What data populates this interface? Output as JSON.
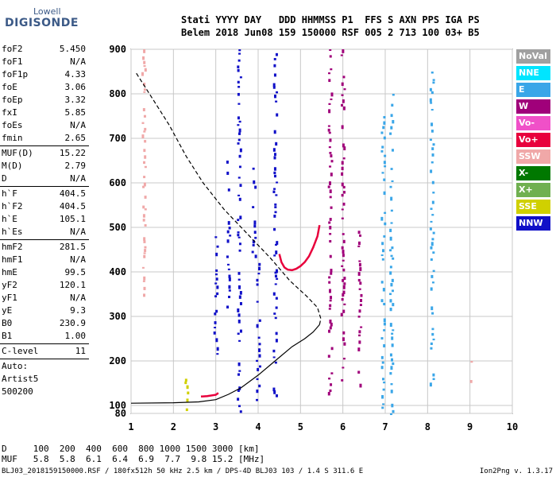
{
  "logo": {
    "top": "Lowell",
    "bottom": "DIGISONDE"
  },
  "header": {
    "line1": "Stati YYYY DAY   DDD HHMMSS P1  FFS S AXN PPS IGA PS",
    "line2": "Belem 2018 Jun08 159 150000 RSF 005 2 713 100 03+ B5"
  },
  "params": [
    {
      "label": "foF2",
      "value": "5.450"
    },
    {
      "label": "foF1",
      "value": "N/A"
    },
    {
      "label": "foF1p",
      "value": "4.33"
    },
    {
      "label": "foE",
      "value": "3.06"
    },
    {
      "label": "foEp",
      "value": "3.32"
    },
    {
      "label": "fxI",
      "value": "5.85"
    },
    {
      "label": "foEs",
      "value": "N/A"
    },
    {
      "label": "fmin",
      "value": "2.65"
    },
    {
      "sep": true
    },
    {
      "label": "MUF(D)",
      "value": "15.22"
    },
    {
      "label": "M(D)",
      "value": "2.79"
    },
    {
      "label": "D",
      "value": "N/A"
    },
    {
      "sep": true
    },
    {
      "label": "h`F",
      "value": "404.5"
    },
    {
      "label": "h`F2",
      "value": "404.5"
    },
    {
      "label": "h`E",
      "value": "105.1"
    },
    {
      "label": "h`Es",
      "value": "N/A"
    },
    {
      "sep": true
    },
    {
      "label": "hmF2",
      "value": "281.5"
    },
    {
      "label": "hmF1",
      "value": "N/A"
    },
    {
      "label": "hmE",
      "value": "99.5"
    },
    {
      "label": "yF2",
      "value": "120.1"
    },
    {
      "label": "yF1",
      "value": "N/A"
    },
    {
      "label": "yE",
      "value": "9.3"
    },
    {
      "label": "B0",
      "value": "230.9"
    },
    {
      "label": "B1",
      "value": "1.00"
    },
    {
      "sep": true
    },
    {
      "label": "C-level",
      "value": "11"
    },
    {
      "sep": true
    },
    {
      "label": "Auto:",
      "value": ""
    },
    {
      "label": "Artist5",
      "value": ""
    },
    {
      "label": "500200",
      "value": ""
    }
  ],
  "legend": [
    {
      "label": "NoVal",
      "color": "#a0a0a0"
    },
    {
      "label": "NNE",
      "color": "#00e5ff"
    },
    {
      "label": "E",
      "color": "#3aa6e8"
    },
    {
      "label": "W",
      "color": "#a0007a"
    },
    {
      "label": "Vo-",
      "color": "#f050c8"
    },
    {
      "label": "Vo+",
      "color": "#e8003c"
    },
    {
      "label": "SSW",
      "color": "#f0a8a8"
    },
    {
      "label": "X-",
      "color": "#007800"
    },
    {
      "label": "X+",
      "color": "#70b050"
    },
    {
      "label": "SSE",
      "color": "#d0d000"
    },
    {
      "label": "NNW",
      "color": "#1010c8"
    }
  ],
  "footer": {
    "dist": "D     100  200  400  600  800 1000 1500 3000 [km]",
    "muf": "MUF   5.8  5.8  6.1  6.4  6.9  7.7  9.8 15.2 [MHz]",
    "file": "BLJ03_2018159150000.RSF / 180fx512h 50 kHz 2.5 km / DPS-4D BLJ03 103 / 1.4 S 311.6 E",
    "version": "Ion2Png v. 1.3.17"
  },
  "chart_data": {
    "type": "scatter",
    "xlim": [
      1,
      10
    ],
    "ylim": [
      80,
      900
    ],
    "x_ticks": [
      "1",
      "2",
      "3",
      "4",
      "5",
      "6",
      "7",
      "8",
      "9",
      "10"
    ],
    "y_ticks": [
      "80",
      "100",
      "200",
      "300",
      "400",
      "500",
      "600",
      "700",
      "800",
      "900"
    ],
    "grid": true,
    "traces": [
      {
        "name": "F2 O-trace",
        "points": [
          [
            4.5,
            440
          ],
          [
            4.55,
            422
          ],
          [
            4.62,
            410
          ],
          [
            4.7,
            405
          ],
          [
            4.8,
            404
          ],
          [
            4.9,
            407
          ],
          [
            5.0,
            413
          ],
          [
            5.1,
            422
          ],
          [
            5.2,
            435
          ],
          [
            5.3,
            455
          ],
          [
            5.4,
            480
          ],
          [
            5.45,
            505
          ]
        ]
      },
      {
        "name": "E trace",
        "points": [
          [
            2.65,
            120
          ],
          [
            2.8,
            121
          ],
          [
            3.0,
            124
          ],
          [
            3.06,
            128
          ]
        ]
      },
      {
        "name": "F profile (solid)",
        "points": [
          [
            1.0,
            105
          ],
          [
            2.0,
            106
          ],
          [
            2.6,
            108
          ],
          [
            3.0,
            113
          ],
          [
            3.3,
            125
          ],
          [
            3.6,
            140
          ],
          [
            4.0,
            168
          ],
          [
            4.4,
            200
          ],
          [
            4.8,
            232
          ],
          [
            5.1,
            250
          ],
          [
            5.3,
            265
          ],
          [
            5.45,
            281.5
          ]
        ]
      },
      {
        "name": "F profile (dashed)",
        "points": [
          [
            5.45,
            281.5
          ],
          [
            5.48,
            295
          ],
          [
            5.4,
            320
          ],
          [
            5.15,
            345
          ],
          [
            4.75,
            380
          ],
          [
            4.3,
            430
          ],
          [
            3.7,
            490
          ],
          [
            3.2,
            540
          ],
          [
            2.7,
            600
          ],
          [
            2.3,
            660
          ],
          [
            1.9,
            730
          ],
          [
            1.5,
            790
          ],
          [
            1.1,
            850
          ]
        ]
      }
    ],
    "echo_columns": [
      {
        "x": 3.55,
        "y0": 80,
        "y1": 900,
        "color": "NNW"
      },
      {
        "x": 3.0,
        "y0": 210,
        "y1": 480,
        "color": "NNW"
      },
      {
        "x": 3.3,
        "y0": 320,
        "y1": 650,
        "color": "NNW"
      },
      {
        "x": 3.9,
        "y0": 420,
        "y1": 650,
        "color": "NNW"
      },
      {
        "x": 4.0,
        "y0": 110,
        "y1": 420,
        "color": "NNW"
      },
      {
        "x": 4.4,
        "y0": 110,
        "y1": 900,
        "color": "NNW"
      },
      {
        "x": 6.0,
        "y0": 120,
        "y1": 900,
        "color": "W"
      },
      {
        "x": 5.7,
        "y0": 120,
        "y1": 900,
        "color": "W"
      },
      {
        "x": 6.4,
        "y0": 140,
        "y1": 500,
        "color": "W"
      },
      {
        "x": 6.95,
        "y0": 80,
        "y1": 750,
        "color": "E"
      },
      {
        "x": 7.15,
        "y0": 80,
        "y1": 800,
        "color": "E"
      },
      {
        "x": 8.1,
        "y0": 150,
        "y1": 850,
        "color": "E"
      },
      {
        "x": 1.3,
        "y0": 350,
        "y1": 900,
        "color": "SSW"
      },
      {
        "x": 9.05,
        "y0": 80,
        "y1": 200,
        "color": "SSW"
      },
      {
        "x": 2.3,
        "y0": 90,
        "y1": 160,
        "color": "SSE"
      }
    ]
  }
}
